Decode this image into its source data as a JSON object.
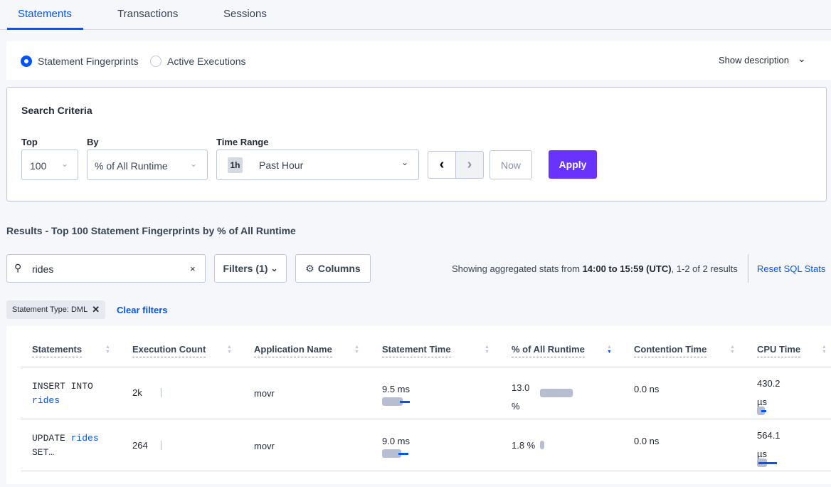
{
  "tabs": [
    "Statements",
    "Transactions",
    "Sessions"
  ],
  "active_tab": "Statements",
  "view_toggle": {
    "options": [
      "Statement Fingerprints",
      "Active Executions"
    ],
    "selected": "Statement Fingerprints",
    "show_description": "Show description"
  },
  "search_criteria": {
    "title": "Search Criteria",
    "top_label": "Top",
    "top_value": "100",
    "by_label": "By",
    "by_value": "% of All Runtime",
    "time_range_label": "Time Range",
    "time_badge": "1h",
    "time_value": "Past Hour",
    "now": "Now",
    "apply": "Apply"
  },
  "results": {
    "heading": "Results - Top 100 Statement Fingerprints by % of All Runtime",
    "search_value": "rides",
    "filters": "Filters (1)",
    "columns": "Columns",
    "summary_prefix": "Showing aggregated stats from ",
    "summary_range": "14:00 to 15:59 (UTC)",
    "summary_suffix": ", 1-2 of 2 results",
    "reset": "Reset SQL Stats",
    "chip": "Statement Type: DML",
    "clear": "Clear filters"
  },
  "accent": "#0055ff",
  "apply_color": "#6933ff",
  "table": {
    "headers": [
      "Statements",
      "Execution Count",
      "Application Name",
      "Statement Time",
      "% of All Runtime",
      "Contention Time",
      "CPU Time"
    ],
    "sorted_column": "% of All Runtime",
    "sort_direction": "descending",
    "rows": [
      {
        "stmt_a": "INSERT INTO",
        "stmt_b": "rides",
        "stmt_c": "",
        "exec": "2k",
        "app": "movr",
        "time": "9.5 ms",
        "pct": "13.0 %",
        "contention": "0.0 ns",
        "cpu": "430.2 µs"
      },
      {
        "stmt_a": "UPDATE ",
        "stmt_b": "rides",
        "stmt_c": "SET…",
        "exec": "264",
        "app": "movr",
        "time": "9.0 ms",
        "pct": "1.8 %",
        "contention": "0.0 ns",
        "cpu": "564.1 µs"
      }
    ]
  }
}
